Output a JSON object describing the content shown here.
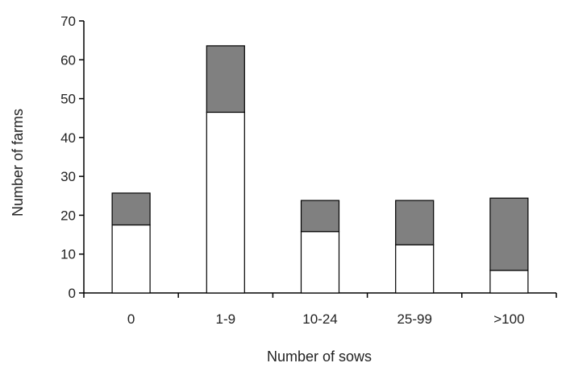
{
  "chart_data": {
    "type": "bar",
    "stacked": true,
    "categories": [
      "0",
      "1-9",
      "10-24",
      "25-99",
      ">100"
    ],
    "series": [
      {
        "values": [
          17.5,
          46.5,
          15.8,
          12.4,
          5.8
        ],
        "color": "#ffffff"
      },
      {
        "values": [
          8.2,
          17.1,
          8.0,
          11.4,
          18.6
        ],
        "color": "#808080"
      }
    ],
    "xlabel": "Number of sows",
    "ylabel": "Number of farms",
    "ylim": [
      0,
      70
    ],
    "yticks": [
      "0",
      "10",
      "20",
      "30",
      "40",
      "50",
      "60",
      "70"
    ],
    "grid": false,
    "legend": "none"
  }
}
